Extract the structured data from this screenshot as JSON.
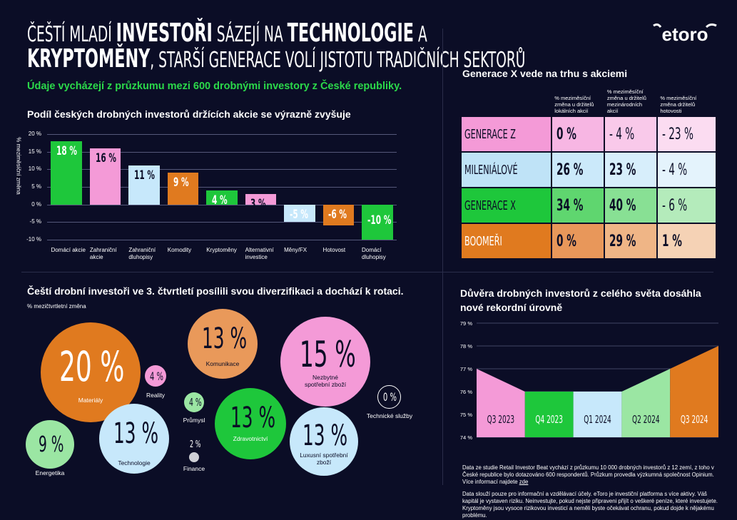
{
  "header": {
    "title_parts": [
      "ČEŠTÍ MLADÍ ",
      "INVESTOŘI",
      " SÁZEJÍ NA ",
      "TECHNOLOGIE",
      " A"
    ],
    "title_line2_parts": [
      "KRYPTOMĚNY",
      ", STARŠÍ GENERACE VOLÍ JISTOTU TRADIČNÍCH SEKTORŮ"
    ],
    "subtitle": "Údaje vycházejí z průzkumu mezi 600 drobnými investory z České republiky.",
    "logo": "etoro"
  },
  "colors": {
    "background": "#0b0d26",
    "green": "#1ec73b",
    "pink": "#f49ad7",
    "lightblue": "#c7e8fb",
    "orange": "#e07a1f",
    "lightgreen": "#9be6a3",
    "salmon": "#e9995a",
    "grey": "#cfd0d6"
  },
  "bar_section": {
    "title": "Podíl českých drobných investorů držících akcie se výrazně zvyšuje",
    "ylabel": "% meziměsíční změna"
  },
  "table_section": {
    "title": "Generace X vede na trhu s akciemi",
    "headers": [
      "% meziměsíční změna u držitelů lokálních akcií",
      "% meziměsíční změna u držitelů mezinárodních akcií",
      "% meziměsíční změna držitelů hotovosti"
    ],
    "rows": [
      {
        "label": "GENERACE Z",
        "values": [
          "0 %",
          "- 4 %",
          "- 23 %"
        ]
      },
      {
        "label": "MILENIÁLOVÉ",
        "values": [
          "26 %",
          "23 %",
          "- 4 %"
        ]
      },
      {
        "label": "GENERACE X",
        "values": [
          "34 %",
          "40 %",
          "- 6 %"
        ]
      },
      {
        "label": "BOOMEŘI",
        "values": [
          "0 %",
          "29 %",
          "1 %"
        ]
      }
    ]
  },
  "bubble_section": {
    "title": "Čeští drobní investoři ve 3. čtvrtletí posílili svou diverzifikaci a dochází k rotaci.",
    "ylabel": "% mezičtvrtletní změna"
  },
  "line_section": {
    "title_line1": "Důvěra drobných investorů z celého světa dosáhla",
    "title_line2": "nové rekordní úrovně"
  },
  "footnote": {
    "para1": "Data ze studie Retail Investor Beat vychází z průzkumu 10 000 drobných investorů z 12 zemí, z toho v České republice bylo dotazováno 600 respondentů. Průzkum  provedla výzkumná společnost Opinium. Více informací najdete ",
    "link": "zde",
    "para2": "Data slouží pouze pro informační a vzdělávací účely. eToro je investiční platforma s více aktivy. Váš kapitál je vystaven riziku. Neinvestujte, pokud nejste připraveni přijít o veškeré peníze, které investujete. Kryptoměny jsou vysoce rizikovou investicí a neměli byste očekávat ochranu, pokud dojde k nějakému problému."
  },
  "chart_data": [
    {
      "type": "bar",
      "title": "Podíl českých drobných investorů držících akcie se výrazně zvyšuje",
      "ylabel": "% meziměsíční změna",
      "categories": [
        "Domácí akcie",
        "Zahraniční akcie",
        "Zahraniční dluhopisy",
        "Komodity",
        "Kryptoměny",
        "Alternativní investice",
        "Měny/FX",
        "Hotovost",
        "Domácí dluhopisy"
      ],
      "category_lines": [
        [
          "Domácí akcie"
        ],
        [
          "Zahraniční",
          "akcie"
        ],
        [
          "Zahraniční",
          "dluhopisy"
        ],
        [
          "Komodity"
        ],
        [
          "Kryptoměny"
        ],
        [
          "Alternativní",
          "investice"
        ],
        [
          "Měny/FX"
        ],
        [
          "Hotovost"
        ],
        [
          "Domácí",
          "dluhopisy"
        ]
      ],
      "values": [
        18,
        16,
        11,
        9,
        4,
        3,
        -5,
        -6,
        -10
      ],
      "value_labels": [
        "18 %",
        "16 %",
        "11 %",
        "9 %",
        "4 %",
        "3 %",
        "-5 %",
        "-6 %",
        "-10 %"
      ],
      "colors": [
        "#1ec73b",
        "#f49ad7",
        "#c7e8fb",
        "#e07a1f",
        "#1ec73b",
        "#f49ad7",
        "#c7e8fb",
        "#e07a1f",
        "#1ec73b"
      ],
      "yticks": [
        20,
        15,
        10,
        5,
        0,
        -5,
        -10
      ],
      "ytick_labels": [
        "20 %",
        "15 %",
        "10 %",
        "5 %",
        "0 %",
        "-5 %",
        "-10 %"
      ],
      "ylim": [
        -10,
        20
      ],
      "grid": true
    },
    {
      "type": "table",
      "title": "Generace X vede na trhu s akciemi",
      "columns": [
        "% meziměsíční změna u držitelů lokálních akcií",
        "% meziměsíční změna u držitelů mezinárodních akcií",
        "% meziměsíční změna držitelů hotovosti"
      ],
      "rows": [
        "GENERACE Z",
        "MILENIÁLOVÉ",
        "GENERACE X",
        "BOOMEŘI"
      ],
      "values": [
        [
          0,
          -4,
          -23
        ],
        [
          26,
          23,
          -4
        ],
        [
          34,
          40,
          -6
        ],
        [
          0,
          29,
          1
        ]
      ]
    },
    {
      "type": "scatter",
      "title": "Čeští drobní investoři ve 3. čtvrtletí posílili svou diverzifikaci a dochází k rotaci.",
      "ylabel": "% mezičtvrtletní změna",
      "series": [
        {
          "name": "Materiály",
          "value": 20,
          "label": "20 %"
        },
        {
          "name": "Reality",
          "value": 4,
          "label": "4 %"
        },
        {
          "name": "Komunikace",
          "value": 13,
          "label": "13 %"
        },
        {
          "name": "Průmysl",
          "value": 4,
          "label": "4 %"
        },
        {
          "name": "Nezbytné spotřební zboží",
          "value": 15,
          "label": "15 %"
        },
        {
          "name": "Technické služby",
          "value": 0,
          "label": "0 %"
        },
        {
          "name": "Energetika",
          "value": 9,
          "label": "9 %"
        },
        {
          "name": "Technologie",
          "value": 13,
          "label": "13 %"
        },
        {
          "name": "Zdravotnictví",
          "value": 13,
          "label": "13 %"
        },
        {
          "name": "Finance",
          "value": 2,
          "label": "2 %"
        },
        {
          "name": "Luxusní spotřební zboží",
          "value": 13,
          "label": "13 %"
        }
      ]
    },
    {
      "type": "area",
      "title": "Důvěra drobných investorů z celého světa dosáhla nové rekordní úrovně",
      "categories": [
        "Q3 2023",
        "Q4 2023",
        "Q1 2024",
        "Q2 2024",
        "Q3 2024"
      ],
      "values": [
        77,
        76,
        76,
        77,
        78
      ],
      "colors": [
        "#f49ad7",
        "#1ec73b",
        "#c7e8fb",
        "#9be6a3",
        "#e07a1f"
      ],
      "yticks": [
        74,
        75,
        76,
        77,
        78,
        79
      ],
      "ytick_labels": [
        "74 %",
        "75 %",
        "76 %",
        "77 %",
        "78 %",
        "79 %"
      ],
      "ylim": [
        74,
        79
      ],
      "grid": true
    }
  ]
}
